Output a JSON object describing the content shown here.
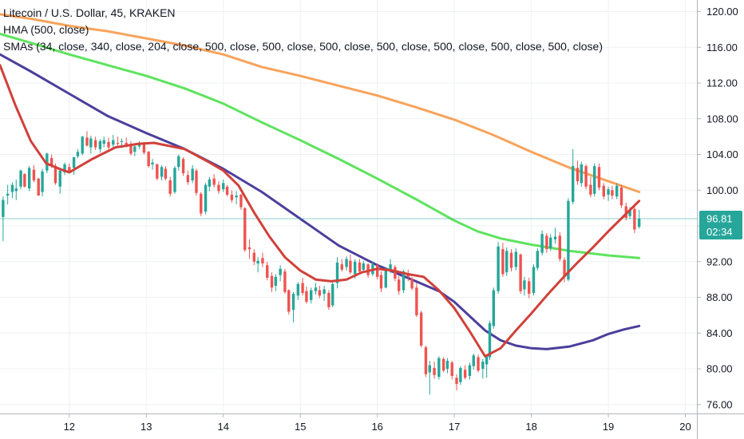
{
  "legend": {
    "title": "Litecoin / U.S. Dollar, 45, KRAKEN",
    "hma": "HMA (500, close)",
    "smas": "SMAs (34, close, 340, close, 204, close, 500, close, 500, close, 500, close, 500, close, 500, close, 500, close, 500, close)"
  },
  "price_axis": {
    "labels": [
      "120.00",
      "116.00",
      "112.00",
      "108.00",
      "104.00",
      "100.00",
      "96.00",
      "92.00",
      "88.00",
      "84.00",
      "80.00",
      "76.00"
    ]
  },
  "time_axis": {
    "labels": [
      "12",
      "13",
      "14",
      "15",
      "16",
      "17",
      "18",
      "19",
      "20"
    ]
  },
  "last_price": {
    "value": "96.81",
    "countdown": "02:34",
    "color": "#26a69a"
  },
  "colors": {
    "up": "#26a69a",
    "down": "#ef5350",
    "hma": "#d0413a",
    "sma_orange": "#f7a35c",
    "sma_green": "#5ee35e",
    "sma_purple": "#4b3f9c",
    "grid": "#eef0f3",
    "axis_line": "#b2b5be"
  },
  "chart_data": {
    "type": "line",
    "title": "Litecoin / U.S. Dollar, 45, KRAKEN",
    "xlabel": "",
    "ylabel": "",
    "xlim": [
      11.1,
      20.15
    ],
    "ylim": [
      75.0,
      121.3
    ],
    "grid": true,
    "legend_position": "top-left",
    "x_ticks": [
      12,
      13,
      14,
      15,
      16,
      17,
      18,
      19,
      20
    ],
    "y_ticks": [
      120,
      116,
      112,
      108,
      104,
      100,
      96,
      92,
      88,
      84,
      80,
      76
    ],
    "last_price": 96.81,
    "series": [
      {
        "name": "HMA (500, close)",
        "color": "#d0413a",
        "x": [
          11.1,
          11.3,
          11.5,
          11.7,
          11.9,
          12.0,
          12.3,
          12.6,
          12.9,
          13.1,
          13.5,
          13.8,
          14.0,
          14.2,
          14.4,
          14.6,
          14.8,
          15.0,
          15.2,
          15.4,
          15.6,
          15.8,
          16.0,
          16.2,
          16.4,
          16.6,
          16.8,
          17.0,
          17.2,
          17.4,
          17.6,
          17.8,
          18.0,
          18.2,
          18.4,
          18.6,
          18.8,
          19.0,
          19.2,
          19.4
        ],
        "y": [
          114.0,
          109.5,
          105.5,
          103.0,
          102.3,
          102.0,
          103.5,
          104.8,
          105.2,
          105.3,
          104.6,
          103.2,
          102.2,
          100.5,
          97.5,
          94.8,
          92.5,
          91.0,
          90.0,
          89.8,
          90.0,
          90.8,
          91.2,
          91.0,
          90.6,
          90.3,
          88.8,
          86.8,
          84.2,
          81.4,
          82.3,
          84.3,
          86.2,
          88.2,
          90.1,
          91.9,
          93.6,
          95.4,
          97.1,
          98.8
        ]
      },
      {
        "name": "SMA 340",
        "color": "#f7a35c",
        "x": [
          11.1,
          11.5,
          12.0,
          12.5,
          13.0,
          13.5,
          14.0,
          14.5,
          15.0,
          15.5,
          16.0,
          16.5,
          17.0,
          17.5,
          18.0,
          18.5,
          19.0,
          19.4
        ],
        "y": [
          119.7,
          119.2,
          118.4,
          117.8,
          117.0,
          116.2,
          115.2,
          113.8,
          112.8,
          111.7,
          110.6,
          109.3,
          107.9,
          106.2,
          104.3,
          102.5,
          101.0,
          99.8
        ]
      },
      {
        "name": "SMA 204",
        "color": "#5ee35e",
        "x": [
          11.1,
          11.5,
          12.0,
          12.5,
          13.0,
          13.5,
          14.0,
          14.5,
          15.0,
          15.5,
          16.0,
          16.5,
          17.0,
          17.3,
          17.6,
          18.0,
          18.5,
          19.0,
          19.4
        ],
        "y": [
          117.5,
          116.5,
          115.2,
          114.0,
          112.8,
          111.4,
          109.7,
          107.6,
          105.6,
          103.5,
          101.3,
          99.0,
          96.6,
          95.4,
          94.6,
          93.9,
          93.2,
          92.7,
          92.4
        ]
      },
      {
        "name": "SMA 500",
        "color": "#4b3f9c",
        "x": [
          11.1,
          11.5,
          12.0,
          12.5,
          13.0,
          13.5,
          14.0,
          14.5,
          15.0,
          15.5,
          16.0,
          16.5,
          16.8,
          17.0,
          17.2,
          17.4,
          17.6,
          17.8,
          18.0,
          18.2,
          18.5,
          18.8,
          19.0,
          19.2,
          19.4
        ],
        "y": [
          115.2,
          113.3,
          110.8,
          108.3,
          106.4,
          104.6,
          102.4,
          99.8,
          96.8,
          93.8,
          91.6,
          89.8,
          88.7,
          87.5,
          85.9,
          84.3,
          83.2,
          82.6,
          82.3,
          82.2,
          82.5,
          83.2,
          83.9,
          84.4,
          84.8
        ]
      }
    ],
    "candles": [
      [
        11.14,
        97,
        99.3,
        94.3,
        98.9
      ],
      [
        11.2,
        99.4,
        100.6,
        98.4,
        99.6
      ],
      [
        11.26,
        99.8,
        100.9,
        99.1,
        100.6
      ],
      [
        11.31,
        99.9,
        101.2,
        98.9,
        100.2
      ],
      [
        11.37,
        100.4,
        102.3,
        100.1,
        102.2
      ],
      [
        11.42,
        101.8,
        101.9,
        100.3,
        100.4
      ],
      [
        11.48,
        100.2,
        102.7,
        99.9,
        102.5
      ],
      [
        11.54,
        102.3,
        102.8,
        100.9,
        101.1
      ],
      [
        11.6,
        101.3,
        101.4,
        99.4,
        99.4
      ],
      [
        11.65,
        99.8,
        102.4,
        99.3,
        102.1
      ],
      [
        11.71,
        102.2,
        104.2,
        101.9,
        104.1
      ],
      [
        11.77,
        103.6,
        104.0,
        102.5,
        102.8
      ],
      [
        11.82,
        102.7,
        103.0,
        100.6,
        100.8
      ],
      [
        11.88,
        100.4,
        102.3,
        99.6,
        102.2
      ],
      [
        11.94,
        102.0,
        103.1,
        101.7,
        102.9
      ],
      [
        12.0,
        102.6,
        103.0,
        101.9,
        102.1
      ],
      [
        12.06,
        102.5,
        103.7,
        101.7,
        103.7
      ],
      [
        12.11,
        103.8,
        104.6,
        103.6,
        104.3
      ],
      [
        12.17,
        104.1,
        106.1,
        103.9,
        106.0
      ],
      [
        12.23,
        105.9,
        106.6,
        104.9,
        105.0
      ],
      [
        12.28,
        104.8,
        106.1,
        104.1,
        105.8
      ],
      [
        12.34,
        105.6,
        106.0,
        104.5,
        104.8
      ],
      [
        12.4,
        104.6,
        105.7,
        104.2,
        105.5
      ],
      [
        12.45,
        105.2,
        106.0,
        104.8,
        105.6
      ],
      [
        12.51,
        105.4,
        105.9,
        104.6,
        104.8
      ],
      [
        12.57,
        105.1,
        106.2,
        104.6,
        105.6
      ],
      [
        12.63,
        105.3,
        106.0,
        104.9,
        105.2
      ],
      [
        12.68,
        105.4,
        105.8,
        104.7,
        105.5
      ],
      [
        12.74,
        105.3,
        105.9,
        104.8,
        105.1
      ],
      [
        12.8,
        105.0,
        105.5,
        103.9,
        104.1
      ],
      [
        12.85,
        104.3,
        105.2,
        103.8,
        104.9
      ],
      [
        12.91,
        104.9,
        105.5,
        104.6,
        105.2
      ],
      [
        12.97,
        105.2,
        105.4,
        104.0,
        104.2
      ],
      [
        13.03,
        104.3,
        104.4,
        102.5,
        102.7
      ],
      [
        13.08,
        102.9,
        103.5,
        102.3,
        103.1
      ],
      [
        13.14,
        102.9,
        103.0,
        101.1,
        101.3
      ],
      [
        13.2,
        101.5,
        102.8,
        101.1,
        102.6
      ],
      [
        13.25,
        102.4,
        102.7,
        101.1,
        101.3
      ],
      [
        13.31,
        101.1,
        101.5,
        99.3,
        99.6
      ],
      [
        13.37,
        99.8,
        102.7,
        99.6,
        102.5
      ],
      [
        13.42,
        102.6,
        104.0,
        102.2,
        103.8
      ],
      [
        13.48,
        103.5,
        103.7,
        101.6,
        101.9
      ],
      [
        13.54,
        101.7,
        102.2,
        100.6,
        100.9
      ],
      [
        13.6,
        101.1,
        102.8,
        100.8,
        102.4
      ],
      [
        13.65,
        102.2,
        102.4,
        99.4,
        99.7
      ],
      [
        13.71,
        99.6,
        99.8,
        97.1,
        97.4
      ],
      [
        13.77,
        97.6,
        100.8,
        97.3,
        100.6
      ],
      [
        13.82,
        100.4,
        101.5,
        99.9,
        101.2
      ],
      [
        13.88,
        101.3,
        101.8,
        100.3,
        100.6
      ],
      [
        13.94,
        100.6,
        101.0,
        99.6,
        99.9
      ],
      [
        14.0,
        100.1,
        101.2,
        99.8,
        100.8
      ],
      [
        14.05,
        100.4,
        100.6,
        99.3,
        99.5
      ],
      [
        14.11,
        99.5,
        100.0,
        98.6,
        98.9
      ],
      [
        14.17,
        99.2,
        99.9,
        98.4,
        99.4
      ],
      [
        14.23,
        99.5,
        99.6,
        97.8,
        98.1
      ],
      [
        14.28,
        98.0,
        98.1,
        93.1,
        93.3
      ],
      [
        14.34,
        93.6,
        94.5,
        92.3,
        93.4
      ],
      [
        14.4,
        93.0,
        93.4,
        91.6,
        92.0
      ],
      [
        14.45,
        91.8,
        92.5,
        90.8,
        92.1
      ],
      [
        14.51,
        92.4,
        93.0,
        91.4,
        91.8
      ],
      [
        14.57,
        91.6,
        92.0,
        89.9,
        90.2
      ],
      [
        14.63,
        90.4,
        90.8,
        88.6,
        89.1
      ],
      [
        14.68,
        89.3,
        90.6,
        88.7,
        90.3
      ],
      [
        14.74,
        90.5,
        91.6,
        89.8,
        91.2
      ],
      [
        14.8,
        90.9,
        91.2,
        88.4,
        88.6
      ],
      [
        14.85,
        88.8,
        88.9,
        86.1,
        86.4
      ],
      [
        14.91,
        86.6,
        88.6,
        85.2,
        88.4
      ],
      [
        14.97,
        88.2,
        89.7,
        87.7,
        89.5
      ],
      [
        15.03,
        89.6,
        90.2,
        88.2,
        88.5
      ],
      [
        15.08,
        88.7,
        89.2,
        87.3,
        87.5
      ],
      [
        15.14,
        87.7,
        89.1,
        87.3,
        88.8
      ],
      [
        15.2,
        88.7,
        89.6,
        88.3,
        89.1
      ],
      [
        15.25,
        88.8,
        89.3,
        87.9,
        88.2
      ],
      [
        15.31,
        88.4,
        89.3,
        87.6,
        88.9
      ],
      [
        15.37,
        88.5,
        88.8,
        86.6,
        86.9
      ],
      [
        15.42,
        87.1,
        89.8,
        86.9,
        89.5
      ],
      [
        15.48,
        89.6,
        92.5,
        89.0,
        91.9
      ],
      [
        15.54,
        91.7,
        92.3,
        90.9,
        91.1
      ],
      [
        15.6,
        91.4,
        92.6,
        91.0,
        92.3
      ],
      [
        15.65,
        92.1,
        92.8,
        90.6,
        90.8
      ],
      [
        15.71,
        90.6,
        92.3,
        90.1,
        92.0
      ],
      [
        15.77,
        91.9,
        92.3,
        90.6,
        90.9
      ],
      [
        15.82,
        91.1,
        92.1,
        90.9,
        91.8
      ],
      [
        15.88,
        91.7,
        91.8,
        90.2,
        90.5
      ],
      [
        15.94,
        90.6,
        92.0,
        90.4,
        91.7
      ],
      [
        16.0,
        91.6,
        91.8,
        90.0,
        90.3
      ],
      [
        16.05,
        90.5,
        90.9,
        88.6,
        89.0
      ],
      [
        16.11,
        89.1,
        91.4,
        89.0,
        91.0
      ],
      [
        16.17,
        91.1,
        92.3,
        90.7,
        91.7
      ],
      [
        16.23,
        91.4,
        91.6,
        89.8,
        90.1
      ],
      [
        16.28,
        90.0,
        90.4,
        88.3,
        88.7
      ],
      [
        16.34,
        88.8,
        91.1,
        88.5,
        90.9
      ],
      [
        16.4,
        90.6,
        91.1,
        89.8,
        90.3
      ],
      [
        16.45,
        90.1,
        90.3,
        88.8,
        89.0
      ],
      [
        16.51,
        89.1,
        89.6,
        85.8,
        86.0
      ],
      [
        16.57,
        86.3,
        86.5,
        82.4,
        82.6
      ],
      [
        16.63,
        82.4,
        82.6,
        79.1,
        79.4
      ],
      [
        16.68,
        79.6,
        80.9,
        77.1,
        80.4
      ],
      [
        16.74,
        80.1,
        80.8,
        78.9,
        79.3
      ],
      [
        16.8,
        79.1,
        81.4,
        78.8,
        81.2
      ],
      [
        16.86,
        81.1,
        81.3,
        79.6,
        79.8
      ],
      [
        16.91,
        80.0,
        81.2,
        79.5,
        80.9
      ],
      [
        16.97,
        80.7,
        80.9,
        78.8,
        79.2
      ],
      [
        17.03,
        79.0,
        79.4,
        77.6,
        78.3
      ],
      [
        17.08,
        78.5,
        80.3,
        78.2,
        80.1
      ],
      [
        17.14,
        79.9,
        80.4,
        78.8,
        79.0
      ],
      [
        17.2,
        79.2,
        80.7,
        78.8,
        80.4
      ],
      [
        17.25,
        80.3,
        81.7,
        79.9,
        81.5
      ],
      [
        17.31,
        81.3,
        81.6,
        79.6,
        79.8
      ],
      [
        17.37,
        80.0,
        81.1,
        78.9,
        80.8
      ],
      [
        17.42,
        80.5,
        81.6,
        79.0,
        81.4
      ],
      [
        17.46,
        81.3,
        85.4,
        81.0,
        85.1
      ],
      [
        17.51,
        84.8,
        89.1,
        84.5,
        88.8
      ],
      [
        17.57,
        88.7,
        94.2,
        88.4,
        93.7
      ],
      [
        17.63,
        93.4,
        94.1,
        90.3,
        90.6
      ],
      [
        17.68,
        90.8,
        93.6,
        90.4,
        93.2
      ],
      [
        17.74,
        93.0,
        93.4,
        90.9,
        91.3
      ],
      [
        17.8,
        91.4,
        93.5,
        91.0,
        93.1
      ],
      [
        17.86,
        92.8,
        92.9,
        88.4,
        88.7
      ],
      [
        17.91,
        88.9,
        90.3,
        88.2,
        89.9
      ],
      [
        17.97,
        89.8,
        90.2,
        87.9,
        88.4
      ],
      [
        18.03,
        88.5,
        91.7,
        88.2,
        91.4
      ],
      [
        18.08,
        91.3,
        93.5,
        91.0,
        93.2
      ],
      [
        18.14,
        93.0,
        95.5,
        92.7,
        95.1
      ],
      [
        18.2,
        94.9,
        95.2,
        93.0,
        93.4
      ],
      [
        18.25,
        93.5,
        95.1,
        93.2,
        94.7
      ],
      [
        18.31,
        94.5,
        95.8,
        94.0,
        94.8
      ],
      [
        18.37,
        94.9,
        95.3,
        92.0,
        92.3
      ],
      [
        18.43,
        92.2,
        92.5,
        89.7,
        90.3
      ],
      [
        18.48,
        90.0,
        99.1,
        89.8,
        98.8
      ],
      [
        18.54,
        98.7,
        104.6,
        98.4,
        102.7
      ],
      [
        18.6,
        102.5,
        103.3,
        100.6,
        101.0
      ],
      [
        18.65,
        100.8,
        103.2,
        100.4,
        102.9
      ],
      [
        18.71,
        102.7,
        102.9,
        100.1,
        100.4
      ],
      [
        18.77,
        100.6,
        101.5,
        99.2,
        99.5
      ],
      [
        18.82,
        99.6,
        103.0,
        99.3,
        102.7
      ],
      [
        18.88,
        102.6,
        103.0,
        100.0,
        100.3
      ],
      [
        18.94,
        100.5,
        100.8,
        99.0,
        99.3
      ],
      [
        19.0,
        99.5,
        100.4,
        98.8,
        100.1
      ],
      [
        19.05,
        100.0,
        100.5,
        99.0,
        99.4
      ],
      [
        19.11,
        99.3,
        100.8,
        99.0,
        100.5
      ],
      [
        19.17,
        100.3,
        100.6,
        98.0,
        98.3
      ],
      [
        19.23,
        98.2,
        98.6,
        96.6,
        96.9
      ],
      [
        19.28,
        97.1,
        98.1,
        96.8,
        97.7
      ],
      [
        19.34,
        97.9,
        98.3,
        95.2,
        95.6
      ],
      [
        19.4,
        95.9,
        97.8,
        95.7,
        96.81
      ]
    ]
  }
}
